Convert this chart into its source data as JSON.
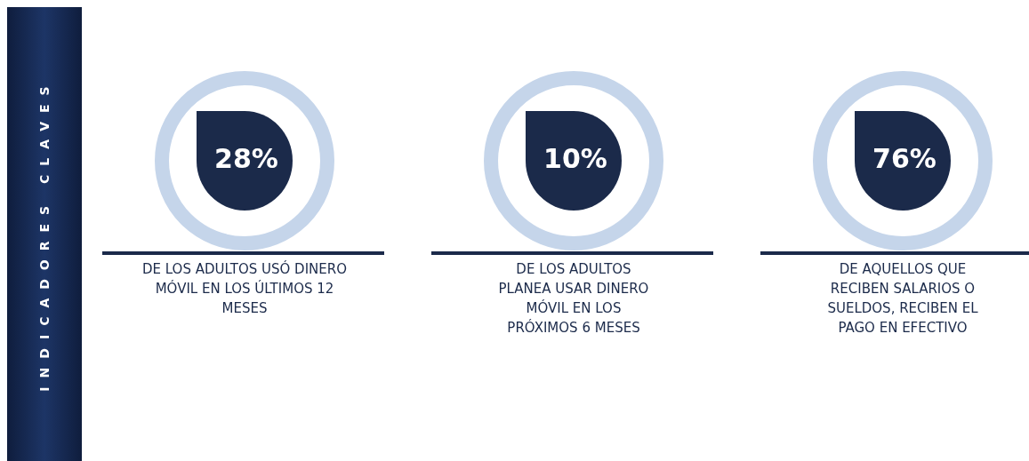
{
  "chart_data": {
    "type": "other",
    "title": "INDICADORES CLAVES",
    "categories": [
      "DE LOS ADULTOS USÓ DINERO MÓVIL EN LOS ÚLTIMOS 12 MESES",
      "DE LOS ADULTOS PLANEA USAR DINERO MÓVIL EN LOS PRÓXIMOS 6 MESES",
      "DE AQUELLOS QUE RECIBEN SALARIOS O SUELDOS, RECIBEN EL PAGO EN EFECTIVO"
    ],
    "values": [
      28,
      10,
      76
    ],
    "value_labels": [
      "28%",
      "10%",
      "76%"
    ],
    "color": "#1b2a4a"
  }
}
